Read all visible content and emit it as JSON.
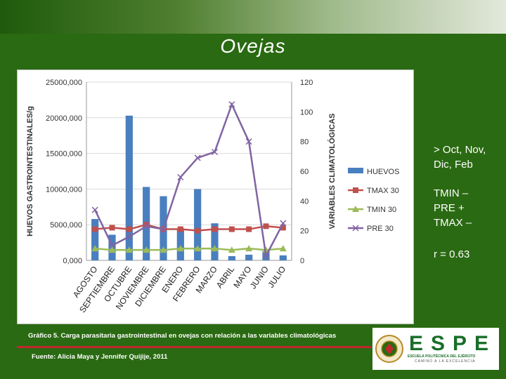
{
  "slide": {
    "title": "Ovejas",
    "side_notes": [
      "> Oct, Nov, Dic, Feb",
      "TMIN – PRE + TMAX –",
      "r = 0.63"
    ],
    "caption": "Gráfico 5. Carga parasitaria gastrointestinal en ovejas con relación a las variables climatológicas",
    "source": "Fuente: Alicia Maya y Jennifer Quijije, 2011",
    "logo": {
      "text": "ESPE",
      "line1": "ESCUELA POLITÉCNICA DEL EJÉRCITO",
      "line2": "CAMINO A LA EXCELENCIA"
    }
  },
  "colors": {
    "background": "#2a6a12",
    "bar": "#4a7fbf",
    "tmax": "#c0504d",
    "tmin": "#9bbb59",
    "pre": "#8064a2",
    "accent_red": "#c1272d",
    "logo_green": "#1a6e2a"
  },
  "chart_data": {
    "type": "bar",
    "categories": [
      "AGOSTO",
      "SEPTIEMBRE",
      "OCTUBRE",
      "NOVIEMBRE",
      "DICIEMBRE",
      "ENERO",
      "FEBRERO",
      "MARZO",
      "ABRIL",
      "MAYO",
      "JUNIO",
      "JULIO"
    ],
    "ylabel": "HUEVOS GASTROINTESTINALES/g",
    "y2label": "VARIABLES CLIMATOLÓGICAS",
    "ylim": [
      0,
      25000
    ],
    "y2lim": [
      0,
      120
    ],
    "yticks": [
      0,
      5000,
      10000,
      15000,
      20000,
      25000
    ],
    "yticklabels": [
      "0,000",
      "5000,000",
      "10000,000",
      "15000,000",
      "20000,000",
      "25000,000"
    ],
    "y2ticks": [
      0,
      20,
      40,
      60,
      80,
      100,
      120
    ],
    "y2ticklabels": [
      "0",
      "20",
      "40",
      "60",
      "80",
      "100",
      "120"
    ],
    "legend_position": "right",
    "series": [
      {
        "name": "HUEVOS",
        "kind": "bar",
        "axis": "left",
        "values": [
          5800,
          3600,
          20300,
          10300,
          9000,
          4500,
          10000,
          5200,
          600,
          800,
          1300,
          700
        ]
      },
      {
        "name": "TMAX 30",
        "kind": "line",
        "axis": "right",
        "marker": "square",
        "values": [
          21,
          22,
          21,
          24,
          21,
          21,
          20,
          21,
          21,
          21,
          23,
          22
        ]
      },
      {
        "name": "TMIN 30",
        "kind": "line",
        "axis": "right",
        "marker": "triangle",
        "values": [
          8,
          7,
          7,
          7,
          7,
          8,
          8,
          8,
          7,
          8,
          7,
          8
        ]
      },
      {
        "name": "PRE 30",
        "kind": "line",
        "axis": "right",
        "marker": "x",
        "values": [
          34,
          10,
          16,
          23,
          21,
          56,
          69,
          73,
          105,
          80,
          3,
          25
        ]
      }
    ]
  }
}
